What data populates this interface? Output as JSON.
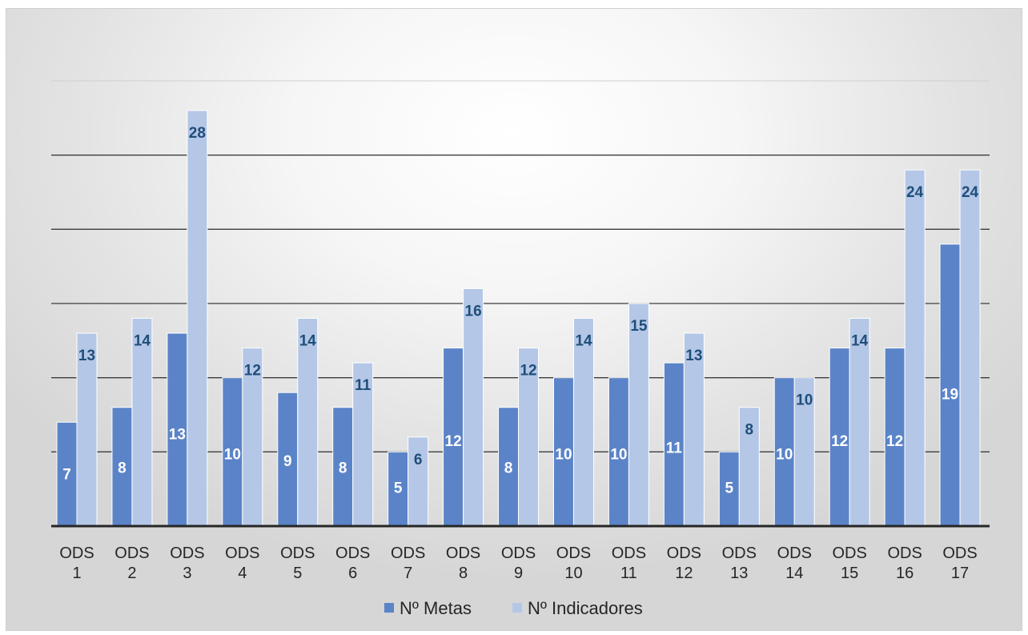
{
  "chart_data": {
    "type": "bar",
    "categories": [
      "ODS 1",
      "ODS 2",
      "ODS 3",
      "ODS 4",
      "ODS 5",
      "ODS 6",
      "ODS 7",
      "ODS 8",
      "ODS 9",
      "ODS 10",
      "ODS 11",
      "ODS 12",
      "ODS 13",
      "ODS 14",
      "ODS 15",
      "ODS 16",
      "ODS 17"
    ],
    "category_lines": [
      [
        "ODS",
        "1"
      ],
      [
        "ODS",
        "2"
      ],
      [
        "ODS",
        "3"
      ],
      [
        "ODS",
        "4"
      ],
      [
        "ODS",
        "5"
      ],
      [
        "ODS",
        "6"
      ],
      [
        "ODS",
        "7"
      ],
      [
        "ODS",
        "8"
      ],
      [
        "ODS",
        "9"
      ],
      [
        "ODS",
        "10"
      ],
      [
        "ODS",
        "11"
      ],
      [
        "ODS",
        "12"
      ],
      [
        "ODS",
        "13"
      ],
      [
        "ODS",
        "14"
      ],
      [
        "ODS",
        "15"
      ],
      [
        "ODS",
        "16"
      ],
      [
        "ODS",
        "17"
      ]
    ],
    "series": [
      {
        "name": "Nº Metas",
        "color": "#5b84c8",
        "label_color": "#ffffff",
        "values": [
          7,
          8,
          13,
          10,
          9,
          8,
          5,
          12,
          8,
          10,
          10,
          11,
          5,
          10,
          12,
          12,
          19
        ]
      },
      {
        "name": "Nº Indicadores",
        "color": "#b4c7e7",
        "label_color": "#1f4e79",
        "values": [
          13,
          14,
          28,
          12,
          14,
          11,
          6,
          16,
          12,
          14,
          15,
          13,
          8,
          10,
          14,
          24,
          24
        ]
      }
    ],
    "ylim": [
      0,
      30
    ],
    "gridline_step": 5,
    "grid": true,
    "y_tick_labels_shown": false,
    "data_labels": true,
    "legend_position": "bottom",
    "title": "",
    "xlabel": "",
    "ylabel": ""
  }
}
